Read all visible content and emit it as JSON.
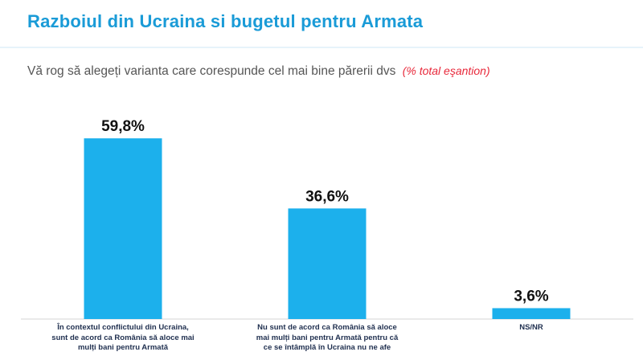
{
  "header": {
    "title": "Razboiul din Ucraina si bugetul pentru Armata",
    "subtitle": "Vă rog să alegeți varianta care corespunde cel mai bine părerii dvs",
    "subtitle_note": "(% total eşantion)"
  },
  "colors": {
    "bar": "#1cb0ec",
    "title": "#1a9bd7",
    "note": "#e8283a"
  },
  "chart_data": {
    "type": "bar",
    "title": "Razboiul din Ucraina si bugetul pentru Armata",
    "xlabel": "",
    "ylabel": "",
    "ylim": [
      0,
      70
    ],
    "grid": false,
    "categories": [
      "În contextul conflictului din Ucraina, sunt de acord ca România să aloce mai mulți bani pentru Armată",
      "Nu sunt de acord ca România să aloce mai mulți bani pentru Armată pentru că ce se întâmplă în Ucraina nu ne afe",
      "NS/NR"
    ],
    "values": [
      59.8,
      36.6,
      3.6
    ],
    "value_labels": [
      "59,8%",
      "36,6%",
      "3,6%"
    ]
  }
}
